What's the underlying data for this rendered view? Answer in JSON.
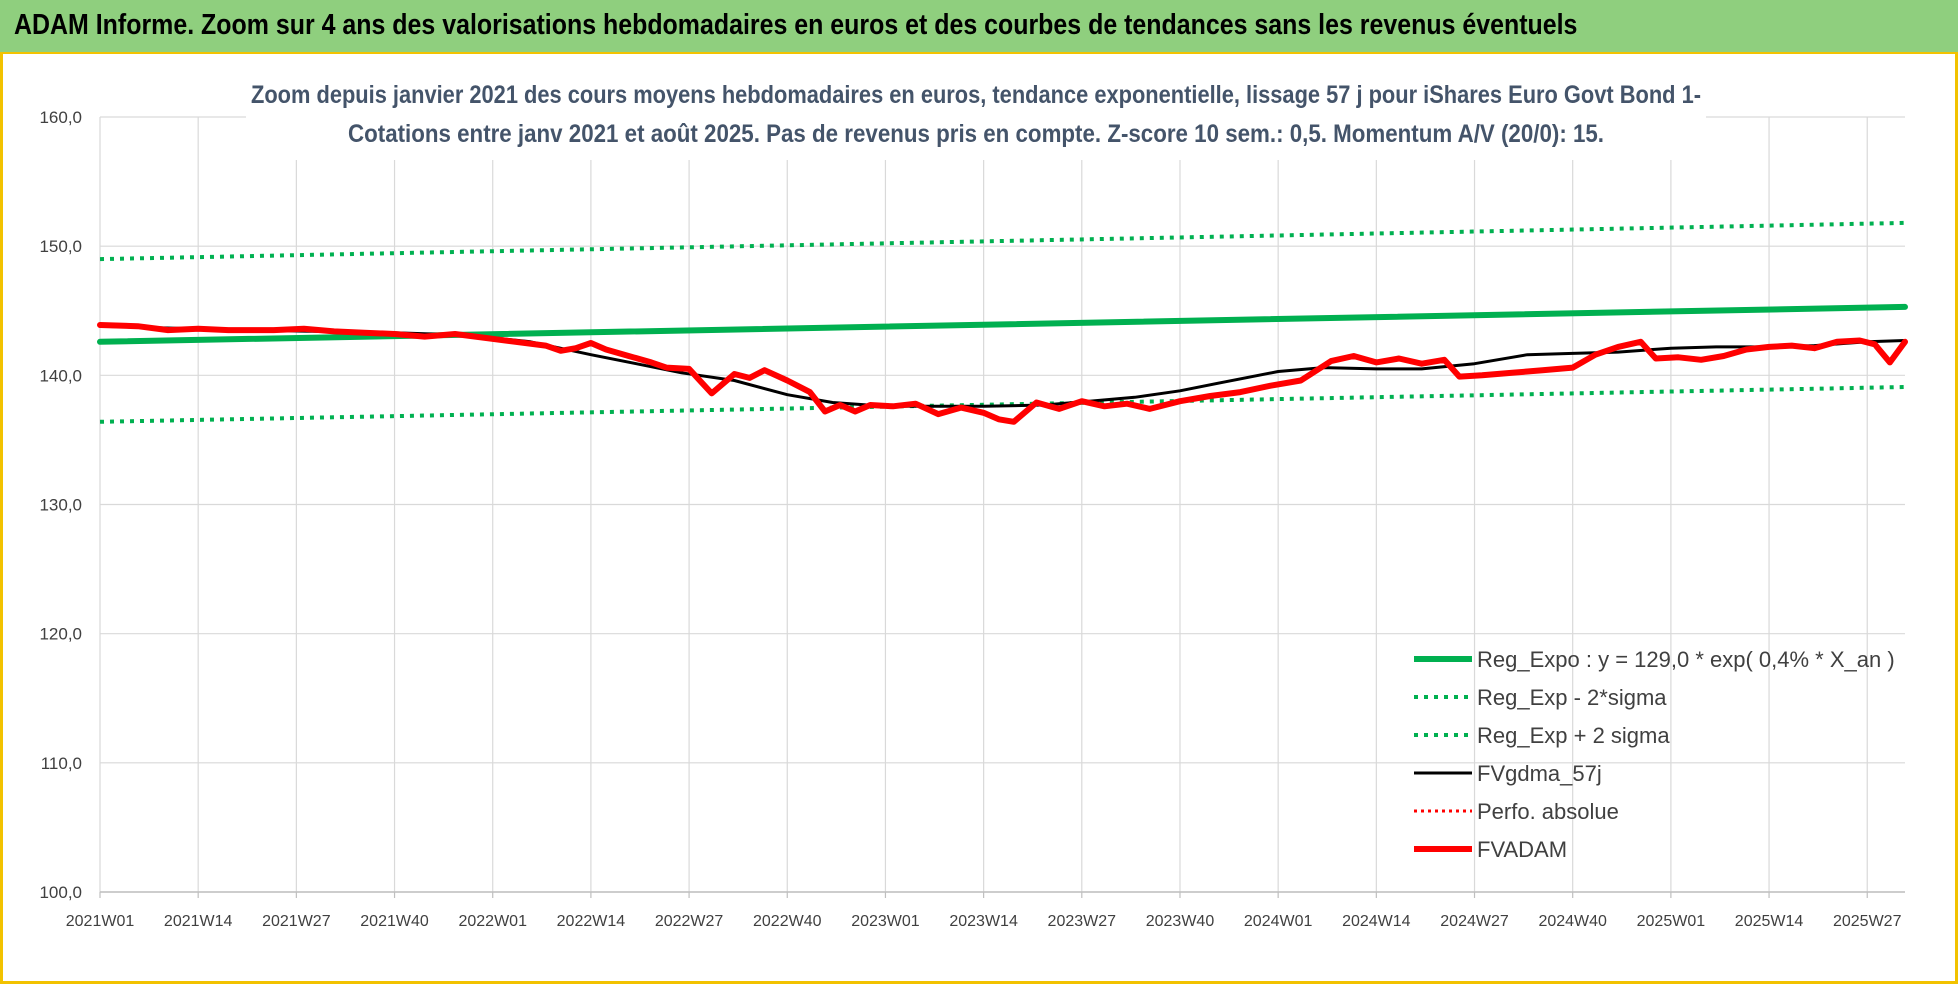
{
  "banner": {
    "title": "ADAM Informe. Zoom sur 4 ans des valorisations hebdomadaires en euros et des courbes de tendances sans les revenus éventuels"
  },
  "colors": {
    "banner_bg": "#8fcf7e",
    "frame_border": "#f2c200",
    "trend": "#00b050",
    "smooth": "#000000",
    "adam": "#ff0000",
    "grid": "#d9d9d9",
    "subtitle": "#44546a"
  },
  "chart_data": {
    "type": "line",
    "title_lines": [
      "Zoom depuis janvier 2021 des cours moyens hebdomadaires en euros, tendance exponentielle, lissage 57 j pour iShares Euro Govt Bond 1-",
      "Cotations entre janv 2021 et août 2025.  Pas de revenus pris en compte. Z-score 10 sem.: 0,5. Momentum A/V (20/0): 15."
    ],
    "ylim": [
      100,
      160
    ],
    "y_ticks": [
      "100,0",
      "110,0",
      "120,0",
      "130,0",
      "140,0",
      "150,0",
      "160,0"
    ],
    "grid": true,
    "legend_position": "bottom-right",
    "x_range_weeks": [
      1,
      240
    ],
    "x_ticks": [
      {
        "label": "2021W01",
        "week": 1
      },
      {
        "label": "2021W14",
        "week": 14
      },
      {
        "label": "2021W27",
        "week": 27
      },
      {
        "label": "2021W40",
        "week": 40
      },
      {
        "label": "2022W01",
        "week": 53
      },
      {
        "label": "2022W14",
        "week": 66
      },
      {
        "label": "2022W27",
        "week": 79
      },
      {
        "label": "2022W40",
        "week": 92
      },
      {
        "label": "2023W01",
        "week": 105
      },
      {
        "label": "2023W14",
        "week": 118
      },
      {
        "label": "2023W27",
        "week": 131
      },
      {
        "label": "2023W40",
        "week": 144
      },
      {
        "label": "2024W01",
        "week": 157
      },
      {
        "label": "2024W14",
        "week": 170
      },
      {
        "label": "2024W27",
        "week": 183
      },
      {
        "label": "2024W40",
        "week": 196
      },
      {
        "label": "2025W01",
        "week": 209
      },
      {
        "label": "2025W14",
        "week": 222
      },
      {
        "label": "2025W27",
        "week": 235
      }
    ],
    "series": [
      {
        "name": "Reg_Expo : y = 129,0 * exp( 0,4% *  X_an )",
        "style": "solid",
        "color": "#00b050",
        "width": 6,
        "points": [
          [
            1,
            142.6
          ],
          [
            240,
            145.3
          ]
        ]
      },
      {
        "name": "Reg_Exp - 2*sigma",
        "style": "dotted",
        "color": "#00b050",
        "width": 4,
        "points": [
          [
            1,
            136.4
          ],
          [
            240,
            139.1
          ]
        ]
      },
      {
        "name": "Reg_Exp + 2 sigma",
        "style": "dotted",
        "color": "#00b050",
        "width": 4,
        "points": [
          [
            1,
            149.0
          ],
          [
            240,
            151.8
          ]
        ]
      },
      {
        "name": "FVgdma_57j",
        "style": "solid",
        "color": "#000000",
        "width": 3,
        "points": [
          [
            1,
            143.8
          ],
          [
            20,
            143.5
          ],
          [
            40,
            143.3
          ],
          [
            50,
            143.1
          ],
          [
            58,
            142.6
          ],
          [
            66,
            141.6
          ],
          [
            72,
            140.9
          ],
          [
            78,
            140.2
          ],
          [
            85,
            139.6
          ],
          [
            92,
            138.5
          ],
          [
            98,
            137.9
          ],
          [
            105,
            137.6
          ],
          [
            112,
            137.6
          ],
          [
            118,
            137.6
          ],
          [
            126,
            137.7
          ],
          [
            132,
            138.0
          ],
          [
            138,
            138.3
          ],
          [
            144,
            138.8
          ],
          [
            150,
            139.5
          ],
          [
            157,
            140.3
          ],
          [
            163,
            140.6
          ],
          [
            170,
            140.5
          ],
          [
            176,
            140.5
          ],
          [
            183,
            140.9
          ],
          [
            190,
            141.6
          ],
          [
            196,
            141.7
          ],
          [
            202,
            141.8
          ],
          [
            209,
            142.1
          ],
          [
            215,
            142.2
          ],
          [
            222,
            142.2
          ],
          [
            228,
            142.3
          ],
          [
            235,
            142.6
          ],
          [
            240,
            142.7
          ]
        ]
      },
      {
        "name": "Perfo. absolue",
        "style": "dotted",
        "color": "#ff0000",
        "width": 3,
        "points": []
      },
      {
        "name": "FVADAM",
        "style": "solid",
        "color": "#ff0000",
        "width": 6,
        "points": [
          [
            1,
            143.9
          ],
          [
            6,
            143.8
          ],
          [
            10,
            143.5
          ],
          [
            14,
            143.6
          ],
          [
            18,
            143.5
          ],
          [
            24,
            143.5
          ],
          [
            28,
            143.6
          ],
          [
            32,
            143.4
          ],
          [
            36,
            143.3
          ],
          [
            40,
            143.2
          ],
          [
            44,
            143.0
          ],
          [
            48,
            143.2
          ],
          [
            52,
            142.9
          ],
          [
            56,
            142.6
          ],
          [
            60,
            142.3
          ],
          [
            62,
            141.9
          ],
          [
            64,
            142.1
          ],
          [
            66,
            142.5
          ],
          [
            68,
            142.0
          ],
          [
            71,
            141.5
          ],
          [
            74,
            141.0
          ],
          [
            76,
            140.6
          ],
          [
            79,
            140.5
          ],
          [
            82,
            138.6
          ],
          [
            85,
            140.1
          ],
          [
            87,
            139.8
          ],
          [
            89,
            140.4
          ],
          [
            92,
            139.6
          ],
          [
            95,
            138.7
          ],
          [
            97,
            137.2
          ],
          [
            99,
            137.7
          ],
          [
            101,
            137.2
          ],
          [
            103,
            137.7
          ],
          [
            106,
            137.6
          ],
          [
            109,
            137.8
          ],
          [
            112,
            137.0
          ],
          [
            115,
            137.5
          ],
          [
            118,
            137.1
          ],
          [
            120,
            136.6
          ],
          [
            122,
            136.4
          ],
          [
            125,
            137.9
          ],
          [
            128,
            137.4
          ],
          [
            131,
            138.0
          ],
          [
            134,
            137.6
          ],
          [
            137,
            137.8
          ],
          [
            140,
            137.4
          ],
          [
            144,
            138.0
          ],
          [
            148,
            138.4
          ],
          [
            152,
            138.7
          ],
          [
            156,
            139.2
          ],
          [
            160,
            139.6
          ],
          [
            164,
            141.1
          ],
          [
            167,
            141.5
          ],
          [
            170,
            141.0
          ],
          [
            173,
            141.3
          ],
          [
            176,
            140.9
          ],
          [
            179,
            141.2
          ],
          [
            181,
            139.9
          ],
          [
            184,
            140.0
          ],
          [
            188,
            140.2
          ],
          [
            192,
            140.4
          ],
          [
            196,
            140.6
          ],
          [
            199,
            141.6
          ],
          [
            202,
            142.2
          ],
          [
            205,
            142.6
          ],
          [
            207,
            141.3
          ],
          [
            210,
            141.4
          ],
          [
            213,
            141.2
          ],
          [
            216,
            141.5
          ],
          [
            219,
            142.0
          ],
          [
            222,
            142.2
          ],
          [
            225,
            142.3
          ],
          [
            228,
            142.1
          ],
          [
            231,
            142.6
          ],
          [
            234,
            142.7
          ],
          [
            236,
            142.4
          ],
          [
            238,
            141.0
          ],
          [
            240,
            142.6
          ]
        ]
      }
    ]
  }
}
